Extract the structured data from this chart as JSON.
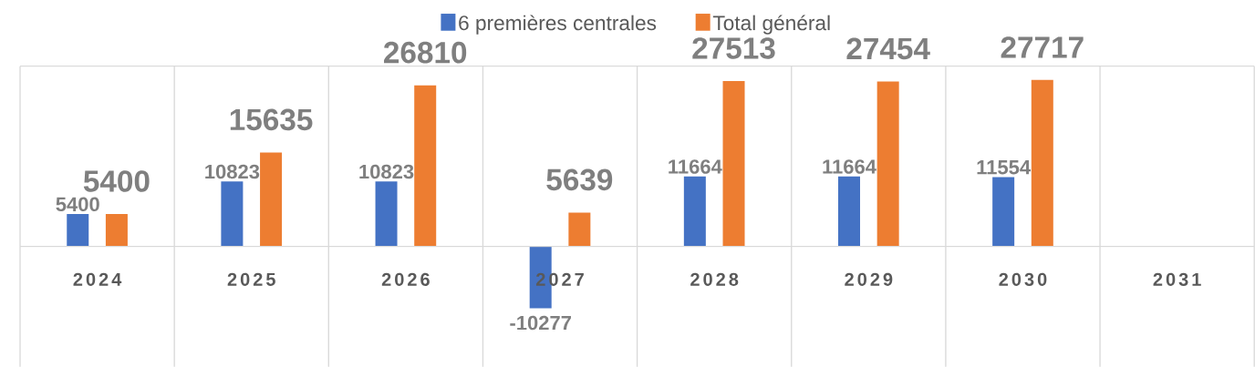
{
  "chart_data": {
    "type": "bar",
    "categories": [
      "2024",
      "2025",
      "2026",
      "2027",
      "2028",
      "2029",
      "2030",
      "2031"
    ],
    "series": [
      {
        "name": "6 premières centrales",
        "color": "#4472c4",
        "values": [
          5400,
          10823,
          10823,
          -10277,
          11664,
          11664,
          11554,
          null
        ]
      },
      {
        "name": "Total   général",
        "color": "#ed7d31",
        "values": [
          5400,
          15635,
          26810,
          5639,
          27513,
          27454,
          27717,
          null
        ]
      }
    ],
    "ylim": [
      -20000,
      30000
    ],
    "tick_labels": "x",
    "data_labels": true,
    "grid": "x",
    "legend": "top"
  }
}
